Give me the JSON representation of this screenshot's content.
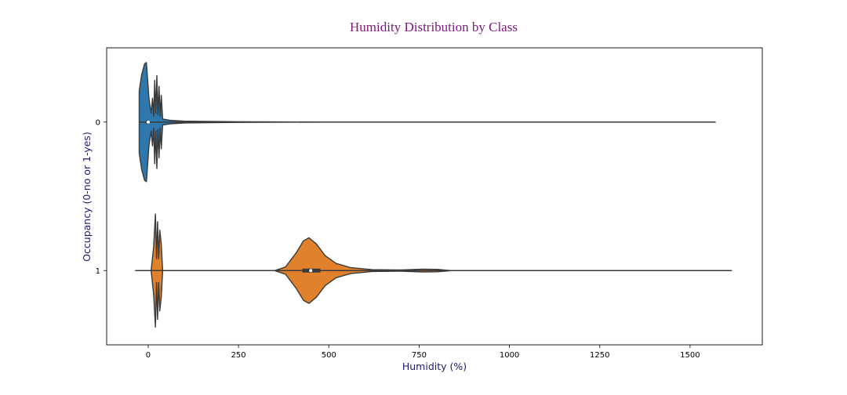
{
  "chart_data": {
    "type": "violin",
    "orientation": "horizontal",
    "title": "Humidity Distribution by Class",
    "xlabel": "Humidity (%)",
    "ylabel": "Occupancy (0-no or 1-yes)",
    "xlim": [
      -115,
      1700
    ],
    "xticks": [
      0,
      250,
      500,
      750,
      1000,
      1250,
      1500
    ],
    "categories": [
      "0",
      "1"
    ],
    "grid": false,
    "legend": "none",
    "colors": {
      "title": "#7b1a7b",
      "axis_label": "#1a1a6e",
      "outline": "#3a3a3a",
      "class_0": "#2f78ae",
      "class_1": "#e1812c"
    },
    "series": [
      {
        "category": "0",
        "min": -25,
        "max": 1570,
        "median": 0,
        "q1": -2,
        "q3": 3,
        "profile": [
          [
            -25,
            0.52
          ],
          [
            -18,
            0.8
          ],
          [
            -10,
            0.98
          ],
          [
            -5,
            1.0
          ],
          [
            2,
            0.4
          ],
          [
            8,
            0.15
          ],
          [
            12,
            0.4
          ],
          [
            15,
            0.1
          ],
          [
            18,
            0.7
          ],
          [
            21,
            0.15
          ],
          [
            24,
            0.78
          ],
          [
            27,
            0.12
          ],
          [
            30,
            0.6
          ],
          [
            33,
            0.1
          ],
          [
            36,
            0.45
          ],
          [
            40,
            0.05
          ],
          [
            60,
            0.03
          ],
          [
            100,
            0.015
          ],
          [
            250,
            0.006
          ],
          [
            370,
            0.002
          ],
          [
            500,
            0.001
          ],
          [
            1570,
            0.0
          ]
        ]
      },
      {
        "category": "1",
        "min": -35,
        "max": 1615,
        "median": 450,
        "q1": 430,
        "q3": 480,
        "profile": [
          [
            -35,
            0.0
          ],
          [
            8,
            0.0
          ],
          [
            15,
            0.4
          ],
          [
            20,
            0.95
          ],
          [
            23,
            0.2
          ],
          [
            26,
            0.82
          ],
          [
            29,
            0.2
          ],
          [
            32,
            0.68
          ],
          [
            36,
            0.45
          ],
          [
            40,
            0.0
          ],
          [
            350,
            0.0
          ],
          [
            380,
            0.06
          ],
          [
            410,
            0.3
          ],
          [
            430,
            0.5
          ],
          [
            445,
            0.55
          ],
          [
            465,
            0.45
          ],
          [
            490,
            0.25
          ],
          [
            520,
            0.12
          ],
          [
            560,
            0.05
          ],
          [
            620,
            0.015
          ],
          [
            700,
            0.01
          ],
          [
            760,
            0.025
          ],
          [
            800,
            0.02
          ],
          [
            840,
            0.0
          ],
          [
            1615,
            0.0
          ]
        ]
      }
    ]
  }
}
